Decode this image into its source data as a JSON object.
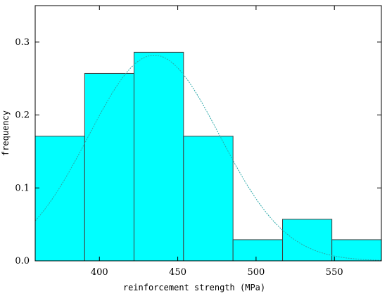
{
  "chart_data": {
    "type": "bar",
    "xlabel": "reinforcement strength (MPa)",
    "ylabel": "frequency",
    "xlim": [
      359,
      580
    ],
    "ylim": [
      0,
      0.35
    ],
    "xticks": [
      400,
      450,
      500,
      550
    ],
    "yticks": [
      0.0,
      0.1,
      0.2,
      0.3
    ],
    "ytick_labels": [
      "0.0",
      "0.1",
      "0.2",
      "0.3"
    ],
    "bins": [
      {
        "x0": 359,
        "x1": 390.6,
        "value": 0.171
      },
      {
        "x0": 390.6,
        "x1": 422.1,
        "value": 0.257
      },
      {
        "x0": 422.1,
        "x1": 453.7,
        "value": 0.286
      },
      {
        "x0": 453.7,
        "x1": 485.3,
        "value": 0.171
      },
      {
        "x0": 485.3,
        "x1": 516.9,
        "value": 0.029
      },
      {
        "x0": 516.9,
        "x1": 548.4,
        "value": 0.057
      },
      {
        "x0": 548.4,
        "x1": 580,
        "value": 0.029
      }
    ],
    "curve": {
      "type": "normal",
      "mean": 435,
      "sd": 42,
      "peak": 0.282
    },
    "colors": {
      "bar_fill": "#00ffff",
      "bar_stroke": "#404040",
      "curve": "#2aa8a8"
    }
  }
}
